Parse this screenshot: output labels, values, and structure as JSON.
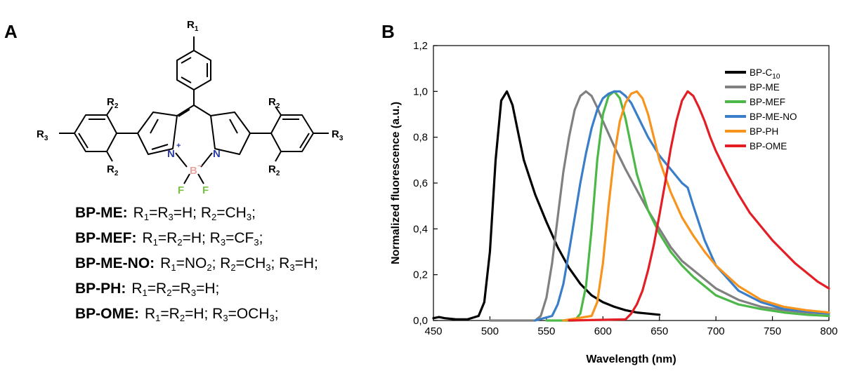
{
  "panel_a": {
    "label": "A",
    "atoms": {
      "r1": "R",
      "r1_sub": "1",
      "r2": "R",
      "r2_sub": "2",
      "r3": "R",
      "r3_sub": "3",
      "n": "N",
      "plus": "+",
      "b": "B",
      "minus": "−",
      "f": "F"
    },
    "compounds": [
      {
        "name": "BP-ME:",
        "segments": [
          [
            "R",
            "1"
          ],
          [
            "=R",
            ""
          ],
          [
            "",
            "3"
          ],
          [
            "=H; R",
            ""
          ],
          [
            "",
            "2"
          ],
          [
            "=CH",
            ""
          ],
          [
            "",
            "3"
          ],
          [
            ";",
            ""
          ]
        ]
      },
      {
        "name": "BP-MEF:",
        "segments": [
          [
            "R",
            "1"
          ],
          [
            "=R",
            ""
          ],
          [
            "",
            "2"
          ],
          [
            "=H; R",
            ""
          ],
          [
            "",
            "3"
          ],
          [
            "=CF",
            ""
          ],
          [
            "",
            "3"
          ],
          [
            ";",
            ""
          ]
        ]
      },
      {
        "name": "BP-ME-NO:",
        "segments": [
          [
            "R",
            "1"
          ],
          [
            "=NO",
            ""
          ],
          [
            "",
            "2"
          ],
          [
            "; R",
            ""
          ],
          [
            "",
            "2"
          ],
          [
            "=CH",
            ""
          ],
          [
            "",
            "3"
          ],
          [
            "; R",
            ""
          ],
          [
            "",
            "3"
          ],
          [
            "=H;",
            ""
          ]
        ]
      },
      {
        "name": "BP-PH:",
        "segments": [
          [
            "R",
            "1"
          ],
          [
            "=R",
            ""
          ],
          [
            "",
            "2"
          ],
          [
            "=R",
            ""
          ],
          [
            "",
            "3"
          ],
          [
            "=H;",
            ""
          ]
        ]
      },
      {
        "name": "BP-OME:",
        "segments": [
          [
            "R",
            "1"
          ],
          [
            "=R",
            ""
          ],
          [
            "",
            "2"
          ],
          [
            "=H; R",
            ""
          ],
          [
            "",
            "3"
          ],
          [
            "=OCH",
            ""
          ],
          [
            "",
            "3"
          ],
          [
            ";",
            ""
          ]
        ]
      }
    ]
  },
  "panel_b": {
    "label": "B"
  },
  "chart_data": {
    "type": "line",
    "xlabel": "Wavelength (nm)",
    "ylabel": "Normalized fluorescence (a.u.)",
    "xlim": [
      450,
      800
    ],
    "ylim": [
      0,
      1.2
    ],
    "xticks": [
      450,
      500,
      550,
      600,
      650,
      700,
      750,
      800
    ],
    "yticks": [
      "0,0",
      "0,2",
      "0,4",
      "0,6",
      "0,8",
      "1,0",
      "1,2"
    ],
    "legend_position": "top-right",
    "grid": false,
    "series": [
      {
        "name": "BP-C",
        "name_sub": "10",
        "color": "#000000",
        "x": [
          450,
          455,
          460,
          470,
          480,
          490,
          495,
          500,
          505,
          510,
          515,
          520,
          525,
          530,
          540,
          550,
          560,
          570,
          580,
          590,
          600,
          610,
          620,
          630,
          640,
          650
        ],
        "y": [
          0.01,
          0.015,
          0.01,
          0.005,
          0.005,
          0.02,
          0.08,
          0.3,
          0.7,
          0.96,
          1.0,
          0.94,
          0.82,
          0.7,
          0.55,
          0.43,
          0.32,
          0.23,
          0.16,
          0.11,
          0.08,
          0.06,
          0.045,
          0.035,
          0.03,
          0.025
        ]
      },
      {
        "name": "BP-ME",
        "color": "#808080",
        "x": [
          500,
          540,
          545,
          550,
          555,
          560,
          565,
          570,
          575,
          580,
          585,
          590,
          595,
          600,
          610,
          620,
          630,
          640,
          650,
          660,
          670,
          680,
          690,
          700,
          720,
          740,
          760,
          780,
          800
        ],
        "y": [
          0,
          0,
          0.02,
          0.1,
          0.25,
          0.45,
          0.65,
          0.8,
          0.92,
          0.98,
          1.0,
          0.98,
          0.93,
          0.87,
          0.76,
          0.66,
          0.57,
          0.48,
          0.4,
          0.32,
          0.26,
          0.22,
          0.18,
          0.14,
          0.09,
          0.06,
          0.045,
          0.035,
          0.03
        ]
      },
      {
        "name": "BP-MEF",
        "color": "#4cb848",
        "x": [
          550,
          575,
          580,
          585,
          590,
          595,
          600,
          605,
          610,
          615,
          620,
          625,
          630,
          640,
          650,
          660,
          670,
          680,
          690,
          700,
          720,
          740,
          760,
          780,
          800
        ],
        "y": [
          0,
          0,
          0.03,
          0.15,
          0.4,
          0.7,
          0.9,
          0.98,
          1.0,
          0.97,
          0.88,
          0.76,
          0.64,
          0.48,
          0.38,
          0.3,
          0.24,
          0.19,
          0.15,
          0.11,
          0.07,
          0.05,
          0.035,
          0.025,
          0.02
        ]
      },
      {
        "name": "BP-ME-NO",
        "color": "#3a7dc9",
        "x": [
          540,
          555,
          560,
          565,
          570,
          575,
          580,
          585,
          590,
          595,
          600,
          605,
          610,
          615,
          620,
          625,
          630,
          640,
          650,
          660,
          670,
          675,
          680,
          690,
          700,
          720,
          740,
          760,
          780,
          800
        ],
        "y": [
          0,
          0.02,
          0.07,
          0.16,
          0.3,
          0.45,
          0.6,
          0.73,
          0.84,
          0.92,
          0.97,
          0.99,
          1.0,
          1.0,
          0.98,
          0.95,
          0.9,
          0.8,
          0.72,
          0.66,
          0.6,
          0.58,
          0.5,
          0.35,
          0.24,
          0.13,
          0.08,
          0.05,
          0.04,
          0.03
        ]
      },
      {
        "name": "BP-PH",
        "color": "#f7941d",
        "x": [
          565,
          590,
          595,
          600,
          605,
          610,
          615,
          620,
          625,
          630,
          635,
          640,
          645,
          650,
          660,
          670,
          680,
          690,
          700,
          720,
          740,
          760,
          780,
          800
        ],
        "y": [
          0,
          0.02,
          0.08,
          0.25,
          0.5,
          0.72,
          0.87,
          0.95,
          0.99,
          1.0,
          0.97,
          0.9,
          0.8,
          0.7,
          0.56,
          0.45,
          0.37,
          0.3,
          0.24,
          0.15,
          0.09,
          0.06,
          0.045,
          0.035
        ]
      },
      {
        "name": "BP-OME",
        "color": "#e31e24",
        "x": [
          570,
          620,
          625,
          630,
          635,
          640,
          645,
          650,
          655,
          660,
          665,
          670,
          675,
          680,
          685,
          690,
          695,
          700,
          710,
          720,
          730,
          740,
          750,
          760,
          770,
          780,
          790,
          800
        ],
        "y": [
          0,
          0.005,
          0.03,
          0.07,
          0.13,
          0.22,
          0.33,
          0.46,
          0.6,
          0.75,
          0.87,
          0.96,
          1.0,
          0.98,
          0.93,
          0.87,
          0.8,
          0.74,
          0.64,
          0.55,
          0.47,
          0.41,
          0.35,
          0.3,
          0.25,
          0.21,
          0.17,
          0.14
        ]
      }
    ]
  }
}
